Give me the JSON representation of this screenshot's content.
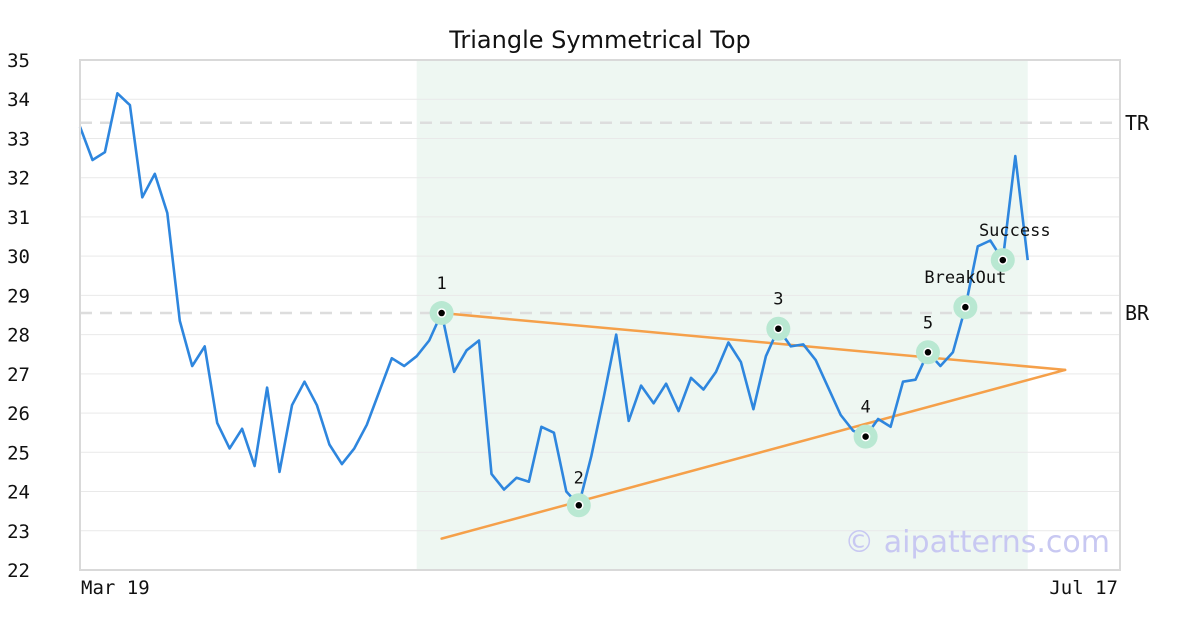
{
  "chart_data": {
    "type": "line",
    "title": "Triangle Symmetrical Top",
    "x_tick_labels": [
      "Mar 19",
      "Jul 17"
    ],
    "ylim": [
      22,
      35
    ],
    "y_ticks": [
      22,
      23,
      24,
      25,
      26,
      27,
      28,
      29,
      30,
      31,
      32,
      33,
      34,
      35
    ],
    "grid": "horizontal",
    "colors": {
      "price": "#2e86de",
      "trendline": "#f5a04a",
      "pattern_region": "#eef7f2",
      "marker_halo": "#b9e8d2",
      "reference_line": "#dddddd"
    },
    "series": [
      {
        "values": [
          33.3,
          32.45,
          32.65,
          34.15,
          33.85,
          31.5,
          32.1,
          31.1,
          28.35,
          27.2,
          27.7,
          25.75,
          25.1,
          25.6,
          24.65,
          26.65,
          24.5,
          26.2,
          26.8,
          26.2,
          25.2,
          24.7,
          25.1,
          25.7,
          26.55,
          27.4,
          27.2,
          27.45,
          27.85,
          28.55,
          27.05,
          27.6,
          27.85,
          24.45,
          24.05,
          24.35,
          24.25,
          25.65,
          25.5,
          24.0,
          23.65,
          24.9,
          26.4,
          28.0,
          25.8,
          26.7,
          26.25,
          26.75,
          26.05,
          26.9,
          26.6,
          27.05,
          27.8,
          27.3,
          26.1,
          27.45,
          28.15,
          27.7,
          27.75,
          27.35,
          26.65,
          25.95,
          25.55,
          25.4,
          25.85,
          25.65,
          26.8,
          26.85,
          27.55,
          27.2,
          27.55,
          28.7,
          30.25,
          30.4,
          29.9,
          32.55,
          29.9
        ]
      }
    ],
    "reference_lines": [
      {
        "label": "TR",
        "y": 33.4
      },
      {
        "label": "BR",
        "y": 28.55
      }
    ],
    "pattern_region_index": [
      27,
      76
    ],
    "trendlines": [
      {
        "start": {
          "index": 29,
          "y": 28.55
        },
        "end": {
          "index": 79,
          "y": 27.1
        }
      },
      {
        "start": {
          "index": 29,
          "y": 22.8
        },
        "end": {
          "index": 79,
          "y": 27.1
        }
      }
    ],
    "points": [
      {
        "label": "1",
        "index": 29,
        "y": 28.55
      },
      {
        "label": "2",
        "index": 40,
        "y": 23.65
      },
      {
        "label": "3",
        "index": 56,
        "y": 28.15
      },
      {
        "label": "4",
        "index": 63,
        "y": 25.4
      },
      {
        "label": "5",
        "index": 68,
        "y": 27.55
      },
      {
        "label": "BreakOut",
        "index": 71,
        "y": 28.7
      },
      {
        "label": "Success",
        "index": 74,
        "y": 29.9
      }
    ]
  },
  "watermark": "© aipatterns.com"
}
